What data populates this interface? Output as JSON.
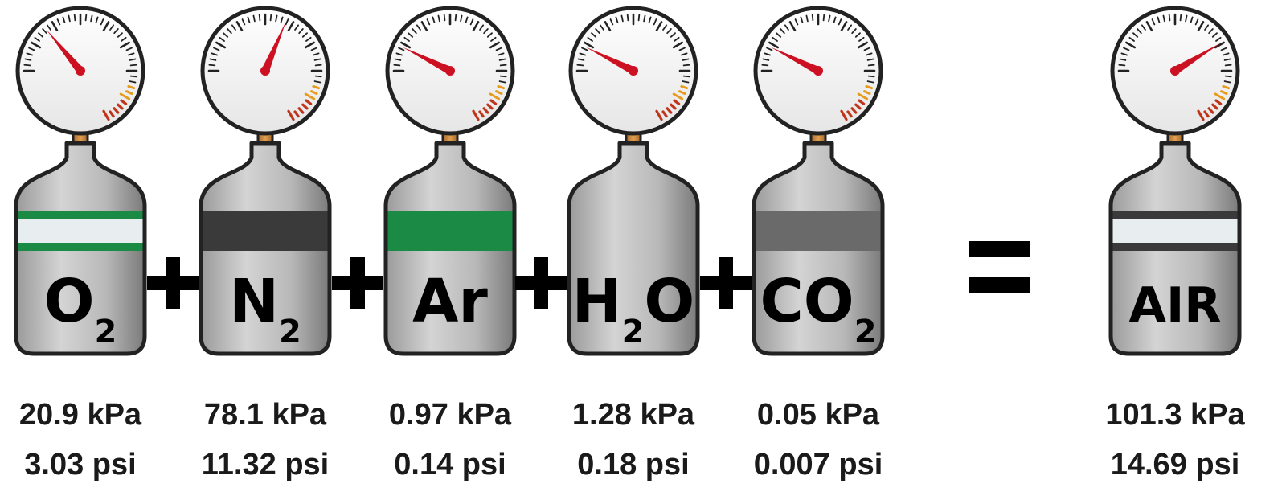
{
  "colors": {
    "needle": "#cc1122",
    "outline": "#222222",
    "band_green": "#1a8a45",
    "band_dark": "#3a3a3a",
    "band_light": "#e8eef0",
    "band_gray": "#6a6a6a",
    "gauge_red_zone": "#c0341a",
    "gauge_amber_zone": "#e89a1a",
    "connector": "#c98a3a"
  },
  "icons": [
    "pressure-gauge-icon",
    "gas-cylinder-icon",
    "plus-icon",
    "equals-icon"
  ],
  "tanks": [
    {
      "id": "o2",
      "main": "O",
      "sub": "2",
      "kpa": "20.9 kPa",
      "psi": "3.03 psi",
      "gauge_fraction": 0.21,
      "band": "white-green"
    },
    {
      "id": "n2",
      "main": "N",
      "sub": "2",
      "kpa": "78.1 kPa",
      "psi": "11.32 psi",
      "gauge_fraction": 0.47,
      "band": "dark"
    },
    {
      "id": "ar",
      "main": "Ar",
      "sub": "",
      "kpa": "0.97 kPa",
      "psi": "0.14 psi",
      "gauge_fraction": 0.11,
      "band": "green"
    },
    {
      "id": "h2o",
      "main": "H",
      "sub": "2",
      "tail": "O",
      "kpa": "1.28 kPa",
      "psi": "0.18 psi",
      "gauge_fraction": 0.11,
      "band": "none"
    },
    {
      "id": "co2",
      "main": "CO",
      "sub": "2",
      "kpa": "0.05 kPa",
      "psi": "0.007 psi",
      "gauge_fraction": 0.11,
      "band": "gray"
    },
    {
      "id": "air",
      "main": "AIR",
      "sub": "",
      "kpa": "101.3 kPa",
      "psi": "14.69 psi",
      "gauge_fraction": 0.62,
      "band": "white-dark"
    }
  ],
  "operators": [
    "+",
    "+",
    "+",
    "+",
    "="
  ]
}
